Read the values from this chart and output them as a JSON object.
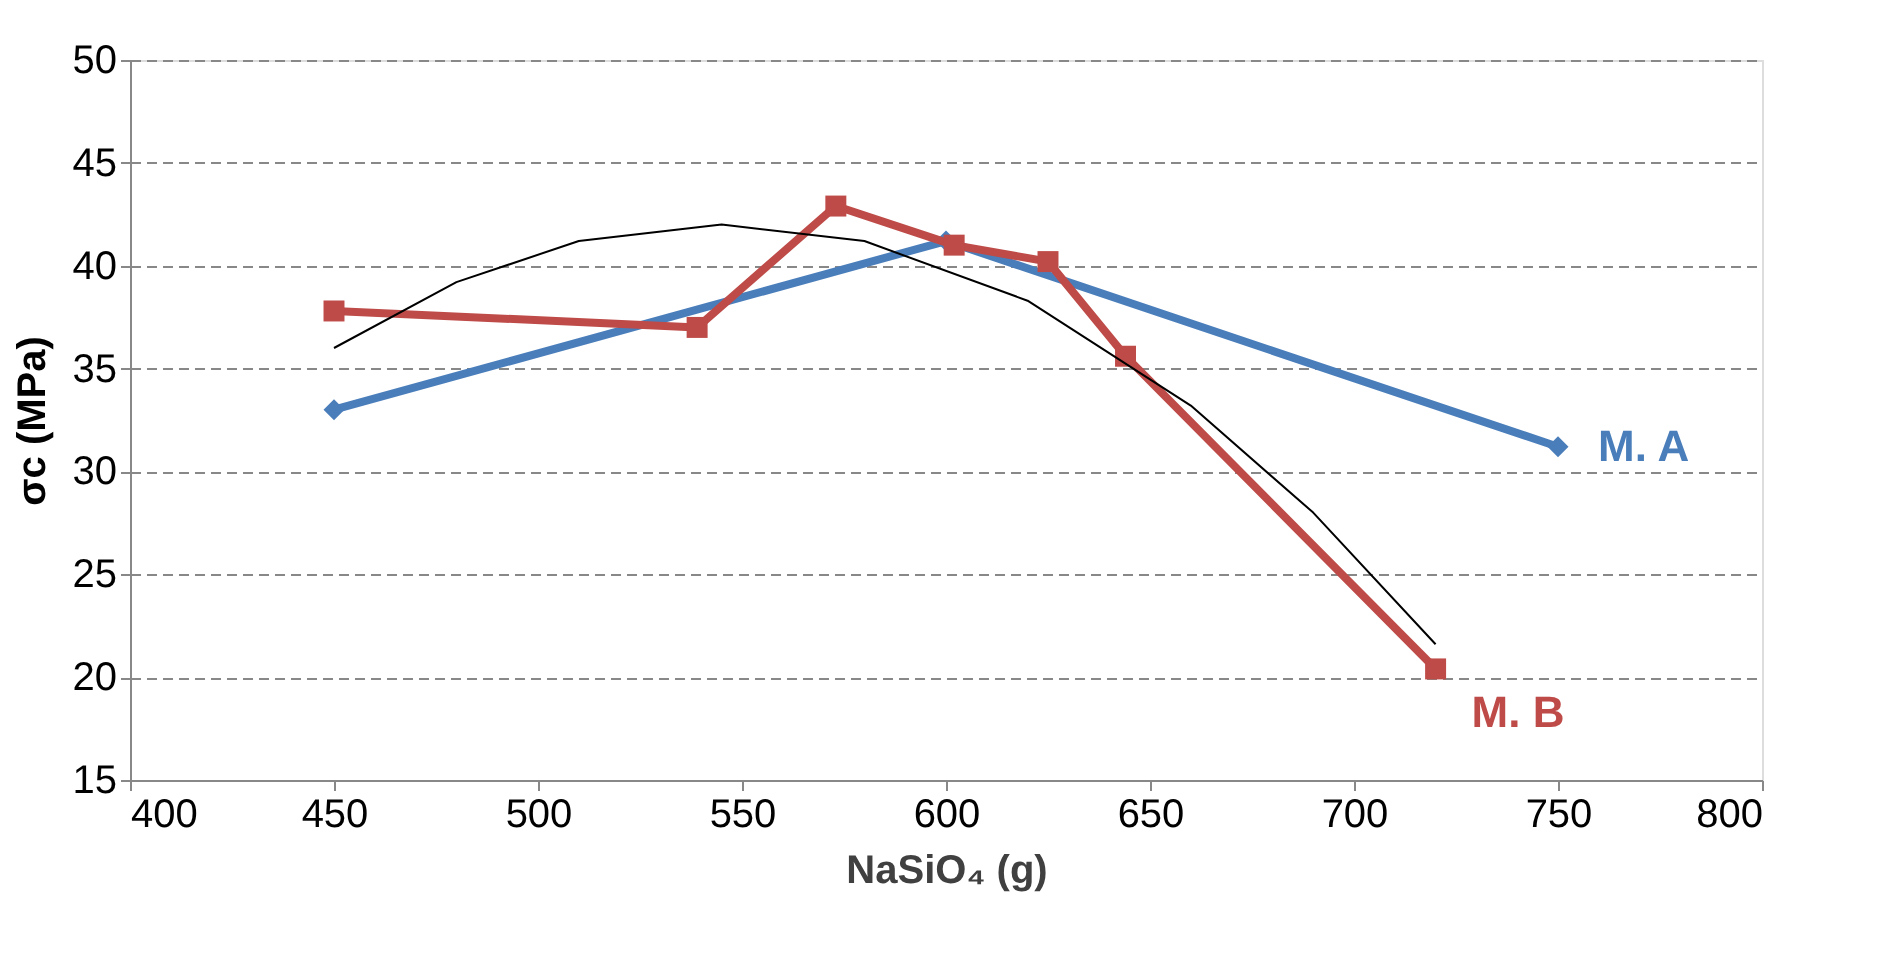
{
  "chart_data": {
    "type": "line",
    "xlabel": "NaSiO₄ (g)",
    "ylabel": "σc (MPa)",
    "xlim": [
      400,
      800
    ],
    "xticks": [
      400,
      450,
      500,
      550,
      600,
      650,
      700,
      750,
      800
    ],
    "ylim": [
      15,
      50
    ],
    "yticks": [
      15,
      20,
      25,
      30,
      35,
      40,
      45,
      50
    ],
    "grid": "y",
    "legend": false,
    "series": [
      {
        "name": "M. A",
        "color": "#4a7ebb",
        "marker": "diamond",
        "x": [
          450,
          600,
          750
        ],
        "values": [
          33,
          41.2,
          31.2
        ]
      },
      {
        "name": "M. B",
        "color": "#be4b48",
        "marker": "square",
        "x": [
          450,
          539,
          573,
          602,
          625,
          644,
          720
        ],
        "values": [
          37.8,
          37,
          42.9,
          41,
          40.2,
          35.6,
          20.4
        ]
      },
      {
        "color": "#000000",
        "marker": "none",
        "x": [
          450,
          480,
          510,
          545,
          580,
          620,
          660,
          690,
          720
        ],
        "values": [
          36.0,
          39.2,
          41.2,
          42.0,
          41.2,
          38.3,
          33.2,
          28.0,
          21.6
        ]
      }
    ]
  }
}
